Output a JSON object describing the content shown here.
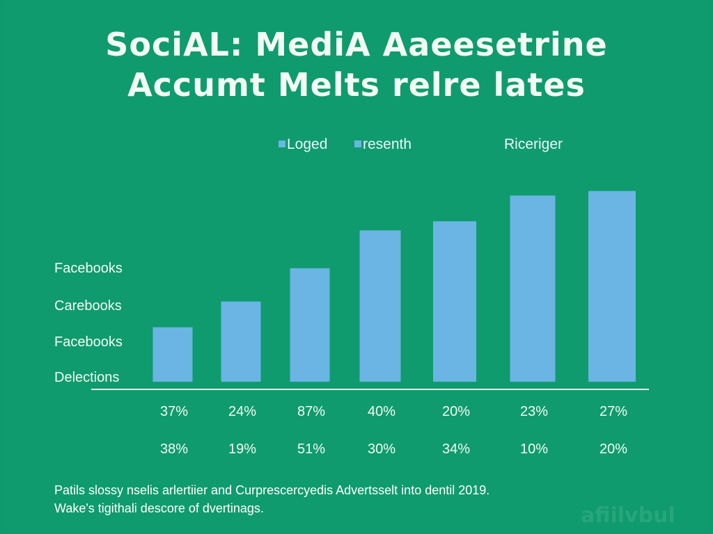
{
  "chart_data": {
    "type": "bar",
    "title_lines": [
      "SociAL: MediA Aaeesetrine",
      "Accumt Melts relre lates"
    ],
    "legend": [
      "Loged",
      "resenth",
      "Riceriger"
    ],
    "y_labels": [
      "Facebooks",
      "Carebooks",
      "Facebooks",
      "Delections"
    ],
    "values": [
      36,
      53,
      75,
      100,
      106,
      123,
      126
    ],
    "ylim": [
      0,
      130
    ],
    "row1": [
      "37%",
      "24%",
      "87%",
      "40%",
      "20%",
      "23%",
      "27%"
    ],
    "row2": [
      "38%",
      "19%",
      "51%",
      "30%",
      "34%",
      "10%",
      "20%"
    ],
    "grid": false,
    "legend_position": "top",
    "bar_color": "#6ab5e4",
    "background_color": "#0f9b6d"
  },
  "footnote": [
    "Patils slossy nselis arlertiier and Curprescercyedis Advertsselt into dentil 2019.",
    "Wake's tigithali descore of dvertinags."
  ],
  "watermark": "afiilvbul"
}
